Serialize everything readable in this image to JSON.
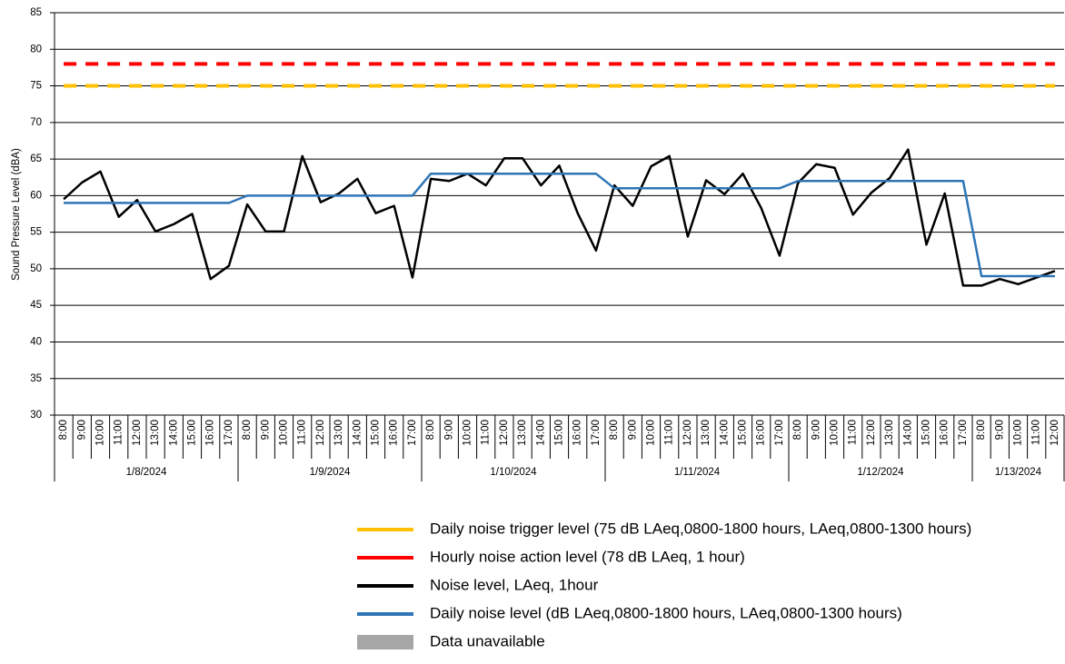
{
  "chart_data": {
    "type": "line",
    "y_label": "Sound Pressure Level (dBA)",
    "ylim": [
      30,
      85
    ],
    "yticks": [
      30,
      35,
      40,
      45,
      50,
      55,
      60,
      65,
      70,
      75,
      80,
      85
    ],
    "grid": true,
    "category_groups": [
      {
        "name": "1/8/2024",
        "categories": [
          "8:00",
          "9:00",
          "10:00",
          "11:00",
          "12:00",
          "13:00",
          "14:00",
          "15:00",
          "16:00",
          "17:00"
        ]
      },
      {
        "name": "1/9/2024",
        "categories": [
          "8:00",
          "9:00",
          "10:00",
          "11:00",
          "12:00",
          "13:00",
          "14:00",
          "15:00",
          "16:00",
          "17:00"
        ]
      },
      {
        "name": "1/10/2024",
        "categories": [
          "8:00",
          "9:00",
          "10:00",
          "11:00",
          "12:00",
          "13:00",
          "14:00",
          "15:00",
          "16:00",
          "17:00"
        ]
      },
      {
        "name": "1/11/2024",
        "categories": [
          "8:00",
          "9:00",
          "10:00",
          "11:00",
          "12:00",
          "13:00",
          "14:00",
          "15:00",
          "16:00",
          "17:00"
        ]
      },
      {
        "name": "1/12/2024",
        "categories": [
          "8:00",
          "9:00",
          "10:00",
          "11:00",
          "12:00",
          "13:00",
          "14:00",
          "15:00",
          "16:00",
          "17:00"
        ]
      },
      {
        "name": "1/13/2024",
        "categories": [
          "8:00",
          "9:00",
          "10:00",
          "11:00",
          "12:00"
        ]
      }
    ],
    "series": [
      {
        "name": "Daily noise trigger level (75 dB LAeq,0800-1800 hours, LAeq,0800-1300 hours)",
        "color": "#ffc000",
        "dashed": true,
        "values": [
          75,
          75,
          75,
          75,
          75,
          75,
          75,
          75,
          75,
          75,
          75,
          75,
          75,
          75,
          75,
          75,
          75,
          75,
          75,
          75,
          75,
          75,
          75,
          75,
          75,
          75,
          75,
          75,
          75,
          75,
          75,
          75,
          75,
          75,
          75,
          75,
          75,
          75,
          75,
          75,
          75,
          75,
          75,
          75,
          75,
          75,
          75,
          75,
          75,
          75,
          75,
          75,
          75,
          75,
          75
        ]
      },
      {
        "name": "Hourly noise action level (78 dB LAeq, 1 hour)",
        "color": "#ff0000",
        "dashed": true,
        "values": [
          78,
          78,
          78,
          78,
          78,
          78,
          78,
          78,
          78,
          78,
          78,
          78,
          78,
          78,
          78,
          78,
          78,
          78,
          78,
          78,
          78,
          78,
          78,
          78,
          78,
          78,
          78,
          78,
          78,
          78,
          78,
          78,
          78,
          78,
          78,
          78,
          78,
          78,
          78,
          78,
          78,
          78,
          78,
          78,
          78,
          78,
          78,
          78,
          78,
          78,
          78,
          78,
          78,
          78,
          78
        ]
      },
      {
        "name": "Noise level, LAeq, 1hour",
        "color": "#000000",
        "dashed": false,
        "values": [
          59.5,
          61.8,
          63.3,
          57.1,
          59.4,
          55.1,
          56.1,
          57.5,
          48.6,
          50.4,
          58.8,
          55.1,
          55.1,
          65.4,
          59.1,
          60.3,
          62.3,
          57.6,
          58.6,
          48.8,
          62.3,
          62.0,
          63.0,
          61.4,
          65.1,
          65.1,
          61.4,
          64.1,
          57.6,
          52.5,
          61.4,
          58.6,
          64.0,
          65.4,
          54.4,
          62.1,
          60.2,
          63.0,
          58.3,
          51.8,
          61.7,
          64.3,
          63.8,
          57.4,
          60.4,
          62.4,
          66.3,
          53.3,
          60.3,
          47.7,
          47.7,
          48.6,
          47.9,
          48.8,
          49.7
        ]
      },
      {
        "name": "Daily noise level (dB LAeq,0800-1800 hours, LAeq,0800-1300 hours)",
        "color": "#2e75b6",
        "dashed": false,
        "values": [
          59,
          59,
          59,
          59,
          59,
          59,
          59,
          59,
          59,
          59,
          60,
          60,
          60,
          60,
          60,
          60,
          60,
          60,
          60,
          60,
          63,
          63,
          63,
          63,
          63,
          63,
          63,
          63,
          63,
          63,
          61,
          61,
          61,
          61,
          61,
          61,
          61,
          61,
          61,
          61,
          62,
          62,
          62,
          62,
          62,
          62,
          62,
          62,
          62,
          62,
          49,
          49,
          49,
          49,
          49
        ]
      }
    ],
    "legend_extra": [
      {
        "name": "Data unavailable",
        "color": "#a6a6a6"
      }
    ]
  }
}
